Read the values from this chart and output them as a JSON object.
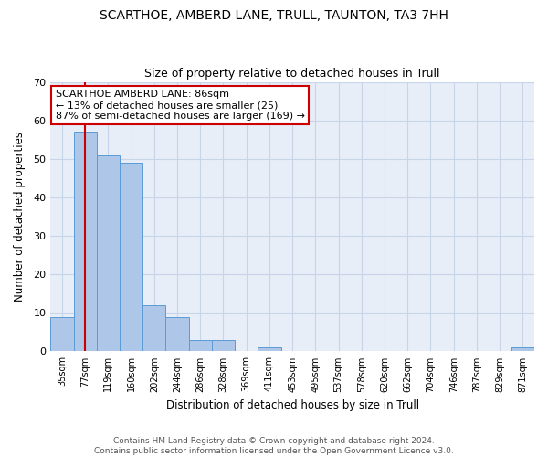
{
  "title1": "SCARTHOE, AMBERD LANE, TRULL, TAUNTON, TA3 7HH",
  "title2": "Size of property relative to detached houses in Trull",
  "xlabel": "Distribution of detached houses by size in Trull",
  "ylabel": "Number of detached properties",
  "categories": [
    "35sqm",
    "77sqm",
    "119sqm",
    "160sqm",
    "202sqm",
    "244sqm",
    "286sqm",
    "328sqm",
    "369sqm",
    "411sqm",
    "453sqm",
    "495sqm",
    "537sqm",
    "578sqm",
    "620sqm",
    "662sqm",
    "704sqm",
    "746sqm",
    "787sqm",
    "829sqm",
    "871sqm"
  ],
  "values": [
    9,
    57,
    51,
    49,
    12,
    9,
    3,
    3,
    0,
    1,
    0,
    0,
    0,
    0,
    0,
    0,
    0,
    0,
    0,
    0,
    1
  ],
  "bar_color": "#aec6e8",
  "bar_edgecolor": "#5b9bd5",
  "ylim": [
    0,
    70
  ],
  "yticks": [
    0,
    10,
    20,
    30,
    40,
    50,
    60,
    70
  ],
  "property_line_x": 1,
  "annotation_text": "SCARTHOE AMBERD LANE: 86sqm\n← 13% of detached houses are smaller (25)\n87% of semi-detached houses are larger (169) →",
  "annotation_box_color": "#ffffff",
  "annotation_box_edgecolor": "#cc0000",
  "property_line_color": "#cc0000",
  "footer1": "Contains HM Land Registry data © Crown copyright and database right 2024.",
  "footer2": "Contains public sector information licensed under the Open Government Licence v3.0.",
  "grid_color": "#c8d4e8",
  "background_color": "#ffffff",
  "plot_bg_color": "#e8eef8"
}
